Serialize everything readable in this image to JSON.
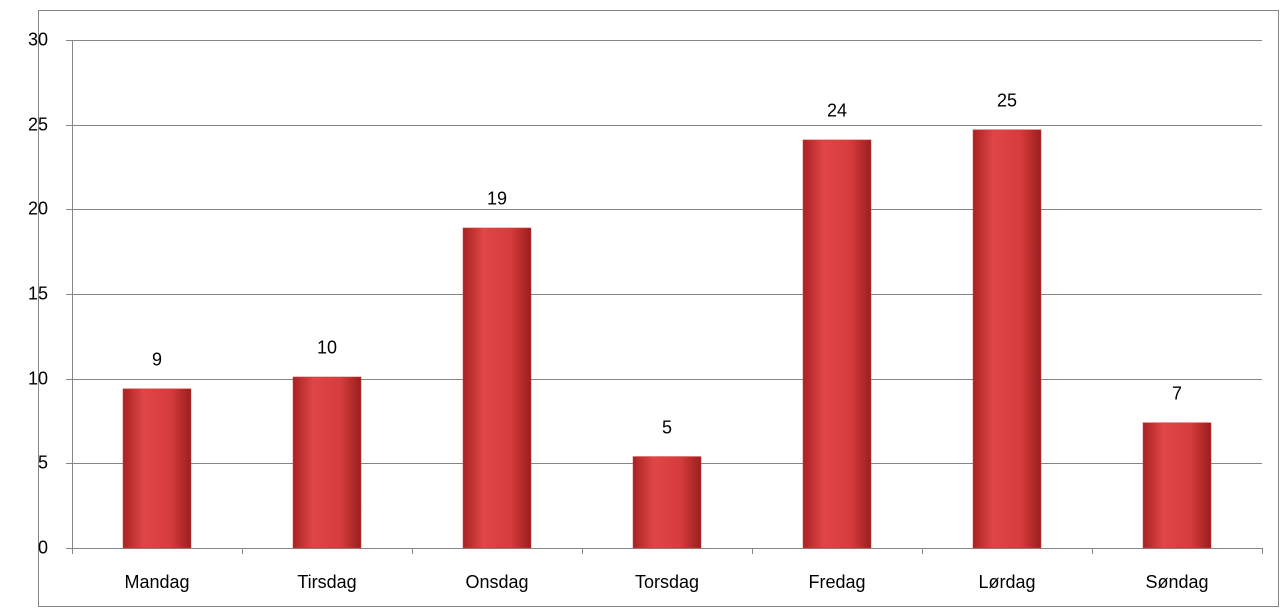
{
  "chart_data": {
    "type": "bar",
    "categories": [
      "Mandag",
      "Tirsdag",
      "Onsdag",
      "Torsdag",
      "Fredag",
      "Lørdag",
      "Søndag"
    ],
    "values": [
      9.4,
      10.1,
      18.9,
      5.4,
      24.1,
      24.7,
      7.4
    ],
    "value_labels": [
      "9",
      "10",
      "19",
      "5",
      "24",
      "25",
      "7"
    ],
    "color": "#d43b3b",
    "ylim": [
      0,
      30
    ],
    "yticks": [
      0,
      5,
      10,
      15,
      20,
      25,
      30
    ],
    "grid": true
  }
}
